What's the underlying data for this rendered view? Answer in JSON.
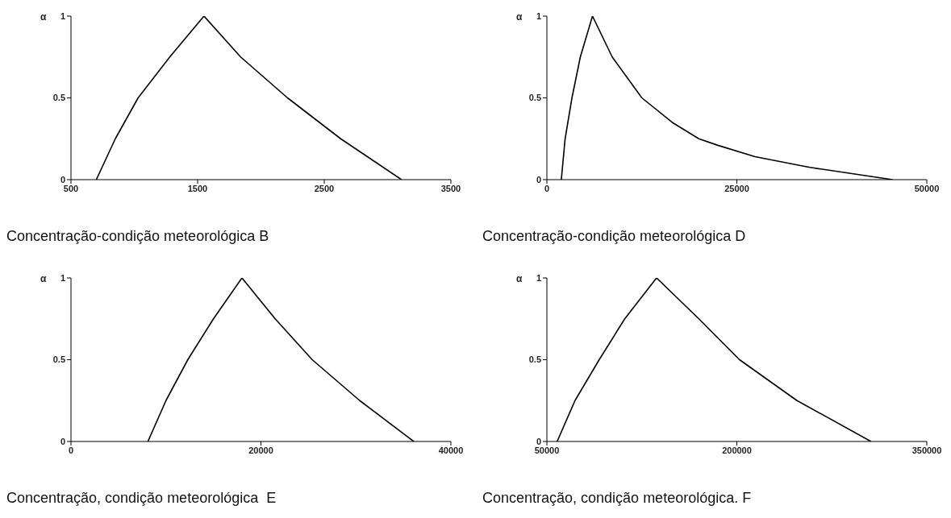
{
  "chart_data": [
    {
      "type": "line",
      "title": "Concentração-condição meteorológica B",
      "ylabel": "α",
      "color": "#000000",
      "x": [
        700,
        850,
        1030,
        1280,
        1550,
        1840,
        2210,
        2630,
        3110
      ],
      "values": [
        0,
        0.25,
        0.5,
        0.75,
        1,
        0.75,
        0.5,
        0.25,
        0
      ],
      "xlim": [
        500,
        3500
      ],
      "xticks": [
        500,
        1500,
        2500,
        3500
      ],
      "ylim": [
        0,
        1
      ],
      "yticks": [
        0,
        0.5,
        1
      ]
    },
    {
      "type": "line",
      "title": "Concentração-condição meteorológica D",
      "ylabel": "α",
      "color": "#000000",
      "x": [
        1900,
        2400,
        3300,
        4400,
        6000,
        8600,
        12500,
        16500,
        20000,
        22500,
        27400,
        34600,
        45500
      ],
      "values": [
        0,
        0.25,
        0.5,
        0.75,
        1,
        0.75,
        0.5,
        0.35,
        0.25,
        0.21,
        0.14,
        0.075,
        0
      ],
      "xlim": [
        0,
        50000
      ],
      "xticks": [
        0,
        25000,
        50000
      ],
      "ylim": [
        0,
        1
      ],
      "yticks": [
        0,
        0.5,
        1
      ]
    },
    {
      "type": "line",
      "title": "Concentração, condição meteorológica  E",
      "ylabel": "α",
      "color": "#000000",
      "x": [
        8100,
        10000,
        12300,
        15000,
        18000,
        21500,
        25400,
        30400,
        36100
      ],
      "values": [
        0,
        0.25,
        0.5,
        0.75,
        1,
        0.75,
        0.5,
        0.25,
        0
      ],
      "xlim": [
        0,
        40000
      ],
      "xticks": [
        0,
        20000,
        40000
      ],
      "ylim": [
        0,
        1
      ],
      "yticks": [
        0,
        0.5,
        1
      ]
    },
    {
      "type": "line",
      "title": "Concentração, condição meteorológica. F",
      "ylabel": "α",
      "color": "#000000",
      "x": [
        58100,
        72200,
        91300,
        111500,
        136600,
        170000,
        202100,
        247500,
        305900
      ],
      "values": [
        0,
        0.25,
        0.5,
        0.75,
        1,
        0.75,
        0.5,
        0.25,
        0
      ],
      "xlim": [
        50000,
        350000
      ],
      "xticks": [
        50000,
        200000,
        350000
      ],
      "ylim": [
        0,
        1
      ],
      "yticks": [
        0,
        0.5,
        1
      ]
    }
  ]
}
